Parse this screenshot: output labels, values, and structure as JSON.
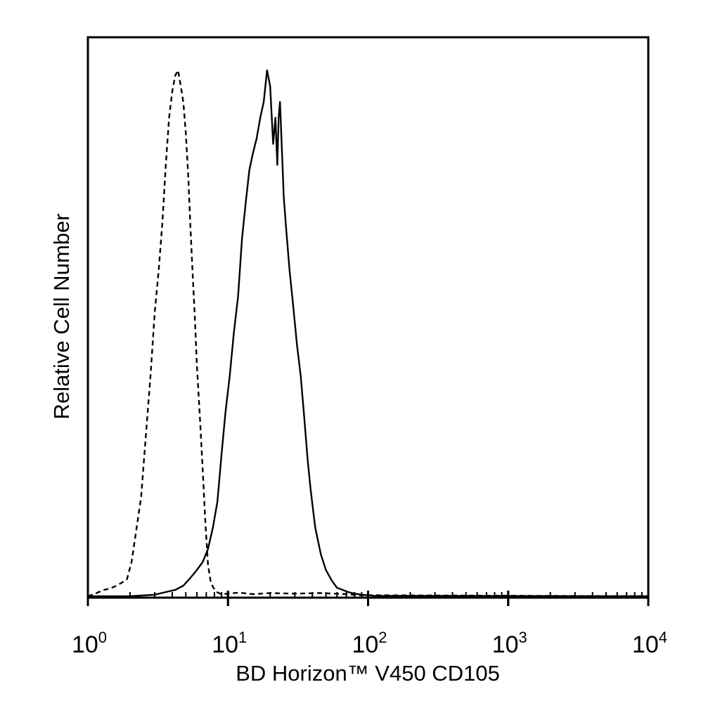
{
  "chart_data": {
    "type": "line",
    "xlabel": "BD Horizon™ V450 CD105",
    "ylabel": "Relative Cell Number",
    "x_scale": "log",
    "xlim": [
      1,
      10000
    ],
    "ylim": [
      0,
      100
    ],
    "x_ticks": [
      {
        "base": "10",
        "exp": "0",
        "value": 1
      },
      {
        "base": "10",
        "exp": "1",
        "value": 10
      },
      {
        "base": "10",
        "exp": "2",
        "value": 100
      },
      {
        "base": "10",
        "exp": "3",
        "value": 1000
      },
      {
        "base": "10",
        "exp": "4",
        "value": 10000
      }
    ],
    "grid": false,
    "series": [
      {
        "style": "dashed",
        "color": "#000000",
        "x": [
          1.0,
          1.15,
          1.3,
          1.45,
          1.6,
          1.75,
          1.9,
          2.05,
          2.2,
          2.4,
          2.6,
          2.8,
          3.0,
          3.2,
          3.4,
          3.6,
          3.8,
          4.0,
          4.2,
          4.4,
          4.6,
          4.8,
          5.0,
          5.2,
          5.4,
          5.6,
          5.8,
          6.0,
          6.3,
          6.6,
          6.9,
          7.2,
          7.5,
          7.8,
          8.2,
          8.6,
          9.0,
          10.0,
          12.0,
          15.0,
          20.0,
          30.0,
          45.0,
          70.0,
          85.0,
          10000
        ],
        "y": [
          0,
          0.6,
          1.2,
          1.5,
          2.0,
          2.6,
          3.2,
          6.5,
          12,
          19,
          31,
          42,
          54,
          62,
          71,
          82,
          91,
          96,
          99,
          100,
          97,
          94,
          88,
          80,
          70,
          61,
          53,
          44,
          34,
          24,
          14,
          6,
          3,
          1.8,
          0.9,
          0.6,
          0.4,
          0.5,
          0.7,
          0.4,
          0.6,
          0.5,
          0.6,
          0.4,
          0.2,
          0
        ]
      },
      {
        "style": "solid",
        "color": "#000000",
        "x": [
          1.0,
          2.0,
          3.0,
          3.6,
          4.2,
          4.8,
          5.4,
          6.0,
          6.6,
          7.2,
          7.8,
          8.4,
          9.0,
          9.6,
          10.3,
          11.0,
          11.8,
          12.6,
          13.4,
          14.2,
          15.0,
          16.0,
          17.0,
          18.0,
          19.0,
          20.0,
          21.0,
          21.8,
          22.5,
          23.0,
          23.5,
          24.0,
          24.5,
          25.0,
          26.0,
          27.5,
          29.0,
          31.0,
          33.0,
          35.0,
          37.0,
          39.0,
          42.0,
          46.0,
          50.0,
          55.0,
          60.0,
          66.0,
          72.0,
          80.0,
          90.0,
          110.0,
          10000
        ],
        "y": [
          0,
          0,
          0.3,
          0.8,
          1.2,
          2.0,
          3.5,
          5.0,
          6.5,
          9.0,
          13,
          18,
          27,
          35,
          42,
          50,
          57,
          68,
          75,
          81,
          84,
          87,
          91,
          94,
          100,
          97,
          86,
          91,
          82,
          91,
          94,
          88,
          82,
          76,
          70,
          62,
          56,
          48,
          42,
          34,
          26,
          20,
          13,
          8,
          5,
          3,
          1.6,
          1.2,
          0.8,
          0.5,
          0.3,
          0.1,
          0
        ]
      }
    ]
  }
}
